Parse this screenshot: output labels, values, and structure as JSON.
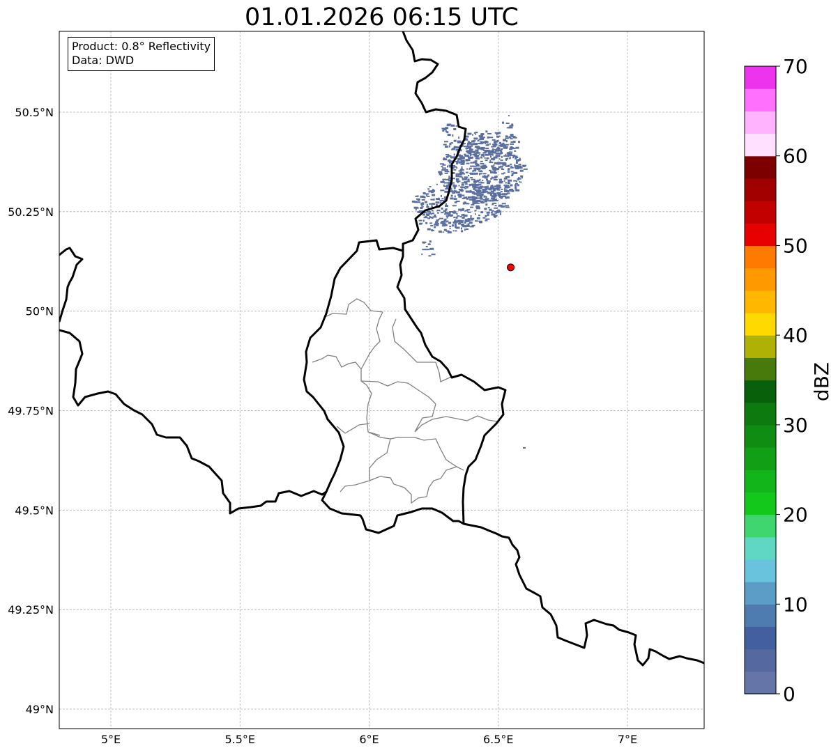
{
  "title": "01.01.2026 06:15 UTC",
  "info": {
    "product_line": "Product: 0.8° Reflectivity",
    "data_line": "Data: DWD"
  },
  "map": {
    "lon_range": [
      4.8,
      7.3
    ],
    "lat_range": [
      48.95,
      50.7
    ],
    "gridlines": true,
    "x_ticks": [
      {
        "value": 5.0,
        "label": "5°E"
      },
      {
        "value": 5.5,
        "label": "5.5°E"
      },
      {
        "value": 6.0,
        "label": "6°E"
      },
      {
        "value": 6.5,
        "label": "6.5°E"
      },
      {
        "value": 7.0,
        "label": "7°E"
      }
    ],
    "y_ticks": [
      {
        "value": 50.5,
        "label": "50.5°N"
      },
      {
        "value": 50.25,
        "label": "50.25°N"
      },
      {
        "value": 50.0,
        "label": "50°N"
      },
      {
        "value": 49.75,
        "label": "49.75°N"
      },
      {
        "value": 49.5,
        "label": "49.5°N"
      },
      {
        "value": 49.25,
        "label": "49.25°N"
      },
      {
        "value": 49.0,
        "label": "49°N"
      }
    ],
    "radar_site": {
      "lon": 6.548,
      "lat": 50.11,
      "color": "#ff0000"
    },
    "echo_color": "#5a6ea0"
  },
  "colorbar": {
    "label": "dBZ",
    "min": 0,
    "max": 70,
    "ticks": [
      {
        "value": 0,
        "label": "0"
      },
      {
        "value": 10,
        "label": "10"
      },
      {
        "value": 20,
        "label": "20"
      },
      {
        "value": 30,
        "label": "30"
      },
      {
        "value": 40,
        "label": "40"
      },
      {
        "value": 50,
        "label": "50"
      },
      {
        "value": 60,
        "label": "60"
      },
      {
        "value": 70,
        "label": "70"
      }
    ],
    "colors": [
      "#6675a8",
      "#5569a0",
      "#445f9f",
      "#4f7cb0",
      "#5c9dc7",
      "#6ac3dc",
      "#5fd7c3",
      "#3fd670",
      "#13c81a",
      "#12b51a",
      "#119f15",
      "#0f8c12",
      "#0c7a0f",
      "#09600a",
      "#477a0b",
      "#afb204",
      "#ffd900",
      "#ffb700",
      "#ff9900",
      "#ff7a00",
      "#e60000",
      "#c20000",
      "#a00000",
      "#7d0000",
      "#ffe0ff",
      "#ffb3ff",
      "#ff70ff",
      "#ee33ee"
    ]
  }
}
